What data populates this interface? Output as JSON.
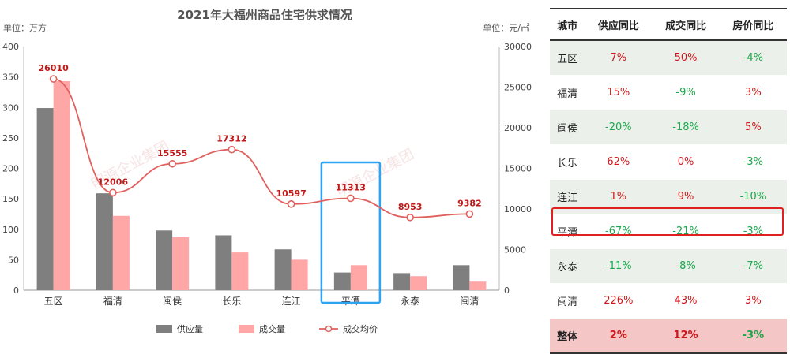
{
  "chart_data": {
    "type": "bar",
    "title": "2021年大福州商品住宅供求情况",
    "y_left_label": "单位：万方",
    "y_right_label": "单位：元/㎡",
    "categories": [
      "五区",
      "福清",
      "闽侯",
      "长乐",
      "连江",
      "平潭",
      "永泰",
      "闽清"
    ],
    "y_left_ticks": [
      "0",
      "50",
      "100",
      "150",
      "200",
      "250",
      "300",
      "350",
      "400"
    ],
    "y_right_ticks": [
      "0",
      "5000",
      "10000",
      "15000",
      "20000",
      "25000",
      "30000"
    ],
    "ylim_left": [
      0,
      400
    ],
    "ylim_right": [
      0,
      30000
    ],
    "series": [
      {
        "name": "供应量",
        "type": "bar",
        "color": "#7f7f7f",
        "values": [
          299,
          159,
          98,
          90,
          67,
          29,
          28,
          41
        ]
      },
      {
        "name": "成交量",
        "type": "bar",
        "color": "#ffa6a6",
        "values": [
          343,
          122,
          87,
          62,
          50,
          41,
          23,
          14
        ]
      },
      {
        "name": "成交均价",
        "type": "line",
        "axis": "right",
        "color": "#e0605e",
        "values": [
          26010,
          12006,
          15555,
          17312,
          10597,
          11313,
          8953,
          9382
        ],
        "labels": [
          "26010",
          "12006",
          "15555",
          "17312",
          "10597",
          "11313",
          "8953",
          "9382"
        ]
      }
    ],
    "highlight_category": "平潭",
    "legend_position": "bottom"
  },
  "watermark": "明源企业集团",
  "table": {
    "headers": [
      "城市",
      "供应同比",
      "成交同比",
      "房价同比"
    ],
    "rows": [
      {
        "city": "五区",
        "supply": "7%",
        "deal": "50%",
        "price": "-4%"
      },
      {
        "city": "福清",
        "supply": "15%",
        "deal": "-9%",
        "price": "3%"
      },
      {
        "city": "闽侯",
        "supply": "-20%",
        "deal": "-18%",
        "price": "5%"
      },
      {
        "city": "长乐",
        "supply": "62%",
        "deal": "0%",
        "price": "-3%"
      },
      {
        "city": "连江",
        "supply": "1%",
        "deal": "9%",
        "price": "-10%"
      },
      {
        "city": "平潭",
        "supply": "-67%",
        "deal": "-21%",
        "price": "-3%"
      },
      {
        "city": "永泰",
        "supply": "-11%",
        "deal": "-8%",
        "price": "-7%"
      },
      {
        "city": "闽清",
        "supply": "226%",
        "deal": "43%",
        "price": "3%"
      }
    ],
    "total": {
      "city": "整体",
      "supply": "2%",
      "deal": "12%",
      "price": "-3%"
    },
    "highlight_row": "平潭"
  }
}
